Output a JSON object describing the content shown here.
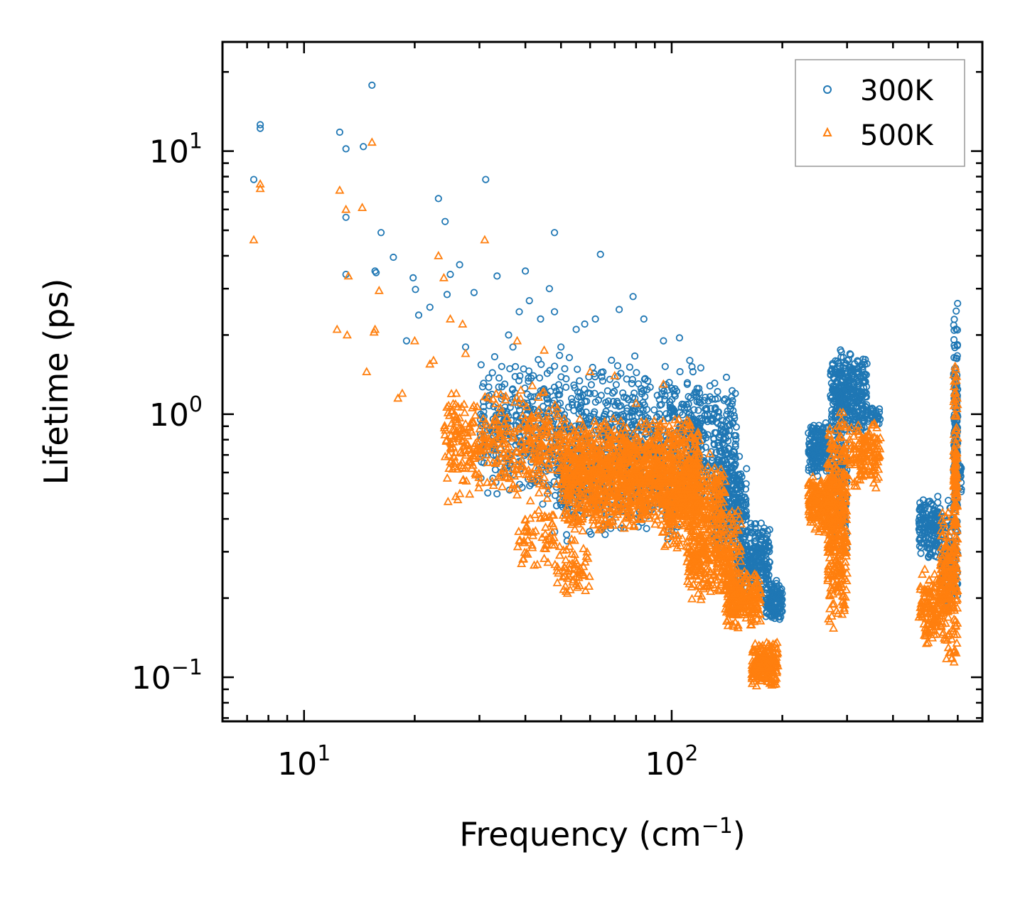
{
  "chart_data": {
    "type": "scatter",
    "title": "",
    "xlabel_main": "Frequency (cm",
    "xlabel_sup": "−1",
    "xlabel_tail": ")",
    "ylabel": "Lifetime (ps)",
    "xscale": "log",
    "yscale": "log",
    "xlim": [
      6.0,
      700
    ],
    "ylim": [
      0.068,
      26
    ],
    "x_ticks": [
      {
        "value": 10,
        "base": "10",
        "exp": "1"
      },
      {
        "value": 100,
        "base": "10",
        "exp": "2"
      }
    ],
    "y_ticks": [
      {
        "value": 0.1,
        "base": "10",
        "exp": "−1"
      },
      {
        "value": 1,
        "base": "10",
        "exp": "0"
      },
      {
        "value": 10,
        "base": "10",
        "exp": "1"
      }
    ],
    "legend_position": "top-right",
    "series": [
      {
        "name": "300K",
        "color": "#1f77b4",
        "marker": "circle",
        "x": [
          7.3,
          7.6,
          7.6,
          12.5,
          13,
          13,
          13,
          14.5,
          15.3,
          15.6,
          15.7,
          16.2,
          17.5,
          19.8,
          20.1,
          20.5,
          23.2,
          24.2,
          24.5,
          25,
          26.5,
          31.2,
          33.5,
          38.5,
          40,
          41,
          46.5,
          48,
          48,
          64,
          78.5,
          62,
          55,
          37,
          29,
          27.5,
          22,
          19,
          36,
          44,
          50,
          58,
          72,
          84,
          95,
          105,
          112,
          120
        ],
        "y": [
          7.8,
          12.2,
          12.6,
          11.8,
          5.6,
          3.4,
          10.2,
          10.4,
          17.8,
          3.5,
          3.45,
          4.9,
          3.95,
          3.3,
          2.98,
          2.38,
          6.6,
          5.4,
          2.85,
          3.4,
          3.7,
          7.8,
          3.35,
          2.45,
          3.5,
          2.7,
          3.0,
          4.9,
          2.45,
          4.05,
          2.8,
          2.3,
          2.1,
          1.8,
          2.9,
          1.8,
          2.55,
          1.9,
          2.0,
          2.3,
          1.8,
          2.2,
          2.5,
          2.3,
          1.9,
          1.95,
          1.6,
          1.5
        ],
        "clusters": [
          {
            "x": [
              30,
              120
            ],
            "y": [
              0.45,
              1.7
            ],
            "n": 900
          },
          {
            "x": [
              48,
              110
            ],
            "y": [
              0.32,
              0.8
            ],
            "n": 300
          },
          {
            "x": [
              110,
              150
            ],
            "y": [
              0.45,
              1.4
            ],
            "n": 250
          },
          {
            "x": [
              130,
              160
            ],
            "y": [
              0.28,
              0.7
            ],
            "n": 250
          },
          {
            "x": [
              150,
              185
            ],
            "y": [
              0.2,
              0.4
            ],
            "n": 250
          },
          {
            "x": [
              180,
              200
            ],
            "y": [
              0.16,
              0.24
            ],
            "n": 120
          },
          {
            "x": [
              235,
              270
            ],
            "y": [
              0.58,
              0.95
            ],
            "n": 180
          },
          {
            "x": [
              270,
              340
            ],
            "y": [
              0.8,
              1.8
            ],
            "n": 320
          },
          {
            "x": [
              275,
              300
            ],
            "y": [
              0.3,
              1.0
            ],
            "n": 120
          },
          {
            "x": [
              340,
              370
            ],
            "y": [
              0.9,
              1.1
            ],
            "n": 30
          },
          {
            "x": [
              470,
              540
            ],
            "y": [
              0.27,
              0.5
            ],
            "n": 160
          },
          {
            "x": [
              540,
              600
            ],
            "y": [
              0.17,
              0.5
            ],
            "n": 90
          },
          {
            "x": [
              585,
              600
            ],
            "y": [
              0.3,
              2.7
            ],
            "n": 150
          },
          {
            "x": [
              600,
              615
            ],
            "y": [
              0.5,
              0.7
            ],
            "n": 20
          }
        ]
      },
      {
        "name": "500K",
        "color": "#ff7f0e",
        "marker": "triangle",
        "x": [
          7.3,
          7.6,
          7.6,
          12.5,
          13,
          13.1,
          13.2,
          14.4,
          15.3,
          15.5,
          15.6,
          16,
          12.3,
          14.8,
          18.5,
          22,
          23.2,
          24,
          25,
          27,
          31,
          38,
          45,
          60,
          70,
          80,
          95,
          20,
          22.5,
          27.5,
          18
        ],
        "y": [
          4.6,
          7.2,
          7.5,
          7.1,
          6.0,
          2.0,
          3.35,
          6.1,
          10.8,
          2.05,
          2.1,
          2.95,
          2.1,
          1.45,
          1.2,
          1.55,
          4.0,
          3.3,
          2.3,
          2.2,
          4.6,
          1.9,
          1.75,
          1.45,
          1.4,
          1.1,
          1.3,
          1.9,
          1.6,
          1.7,
          1.15
        ],
        "clusters": [
          {
            "x": [
              24,
              50
            ],
            "y": [
              0.45,
              1.3
            ],
            "n": 380
          },
          {
            "x": [
              38,
              48
            ],
            "y": [
              0.25,
              0.45
            ],
            "n": 60
          },
          {
            "x": [
              48,
              60
            ],
            "y": [
              0.19,
              0.35
            ],
            "n": 60
          },
          {
            "x": [
              50,
              120
            ],
            "y": [
              0.35,
              1.0
            ],
            "n": 1300
          },
          {
            "x": [
              95,
              140
            ],
            "y": [
              0.3,
              0.75
            ],
            "n": 300
          },
          {
            "x": [
              110,
              155
            ],
            "y": [
              0.18,
              0.45
            ],
            "n": 300
          },
          {
            "x": [
              140,
              175
            ],
            "y": [
              0.15,
              0.26
            ],
            "n": 220
          },
          {
            "x": [
              165,
              195
            ],
            "y": [
              0.09,
              0.14
            ],
            "n": 200
          },
          {
            "x": [
              235,
              270
            ],
            "y": [
              0.35,
              0.6
            ],
            "n": 180
          },
          {
            "x": [
              265,
              300
            ],
            "y": [
              0.15,
              1.1
            ],
            "n": 380
          },
          {
            "x": [
              300,
              370
            ],
            "y": [
              0.5,
              0.95
            ],
            "n": 140
          },
          {
            "x": [
              470,
              540
            ],
            "y": [
              0.13,
              0.27
            ],
            "n": 130
          },
          {
            "x": [
              540,
              600
            ],
            "y": [
              0.11,
              0.45
            ],
            "n": 200
          },
          {
            "x": [
              585,
              600
            ],
            "y": [
              0.25,
              1.7
            ],
            "n": 110
          }
        ]
      }
    ]
  }
}
